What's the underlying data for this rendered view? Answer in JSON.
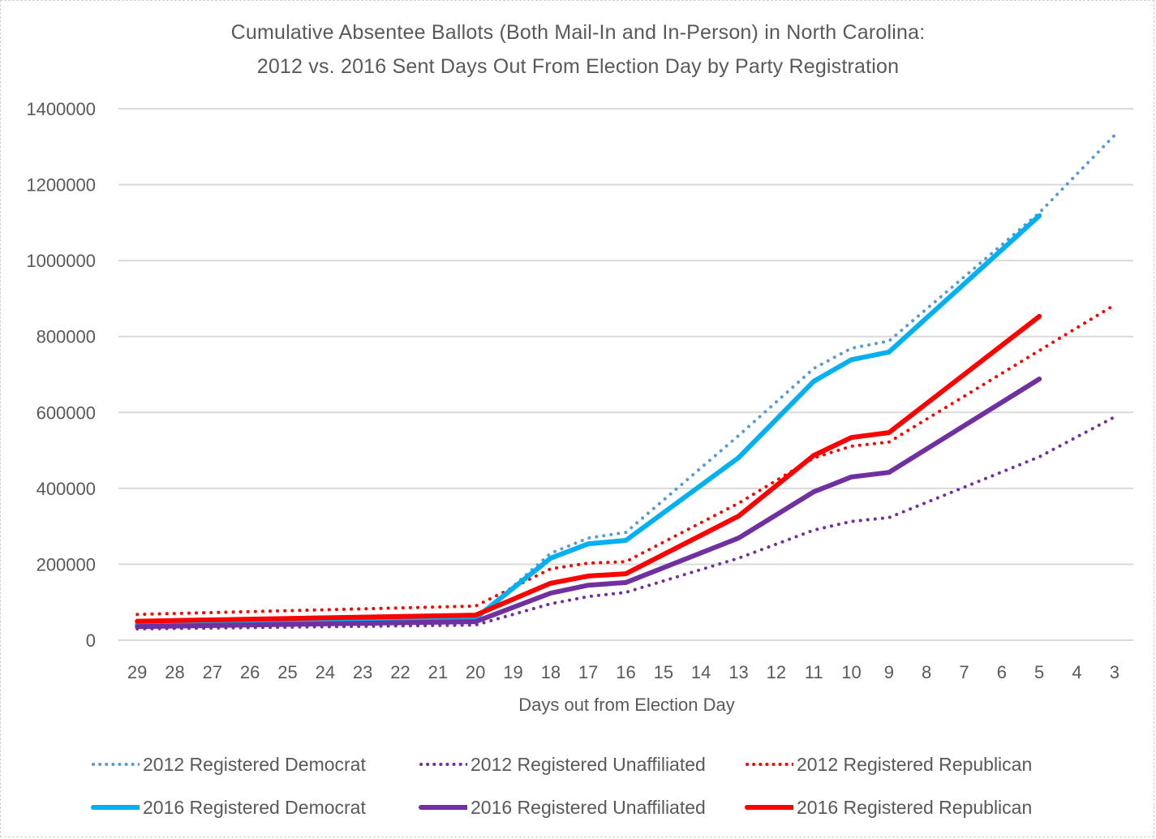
{
  "chart_data": {
    "type": "line",
    "title": "Cumulative Absentee Ballots (Both Mail-In and In-Person) in North Carolina:",
    "subtitle": "2012 vs. 2016 Sent Days Out From Election Day by Party Registration",
    "xlabel": "Days out from Election Day",
    "ylabel": "",
    "ylim": [
      0,
      1400000
    ],
    "yticks": [
      0,
      200000,
      400000,
      600000,
      800000,
      1000000,
      1200000,
      1400000
    ],
    "ytick_labels": [
      "0",
      "200000",
      "400000",
      "600000",
      "800000",
      "1000000",
      "1200000",
      "1400000"
    ],
    "grid": true,
    "legend_position": "bottom",
    "categories": [
      "29",
      "28",
      "27",
      "26",
      "25",
      "24",
      "23",
      "22",
      "21",
      "20",
      "19",
      "18",
      "17",
      "16",
      "15",
      "14",
      "13",
      "12",
      "11",
      "10",
      "9",
      "8",
      "7",
      "6",
      "5",
      "4",
      "3"
    ],
    "connect_gaps": true,
    "series": [
      {
        "name": "2012 Registered Democrat",
        "color": "#5b9bd5",
        "style": "dotted",
        "values": [
          37000,
          null,
          null,
          null,
          null,
          null,
          null,
          null,
          null,
          55000,
          null,
          229000,
          269000,
          284000,
          null,
          null,
          539000,
          null,
          716000,
          769000,
          788000,
          null,
          null,
          null,
          1126000,
          null,
          1330000
        ]
      },
      {
        "name": "2012 Registered Unaffiliated",
        "color": "#7030a0",
        "style": "dotted",
        "values": [
          30000,
          null,
          null,
          null,
          null,
          null,
          null,
          null,
          null,
          40000,
          null,
          96000,
          115000,
          126000,
          null,
          null,
          216000,
          null,
          290000,
          313000,
          323000,
          null,
          null,
          null,
          483000,
          null,
          588000
        ]
      },
      {
        "name": "2012 Registered Republican",
        "color": "#ff0000",
        "style": "dotted",
        "values": [
          68000,
          null,
          null,
          null,
          null,
          null,
          null,
          null,
          null,
          90000,
          null,
          188000,
          203000,
          207000,
          null,
          null,
          361000,
          null,
          480000,
          511000,
          522000,
          null,
          null,
          null,
          763000,
          null,
          883000
        ]
      },
      {
        "name": "2016 Registered Democrat",
        "color": "#00b0f0",
        "style": "solid",
        "values": [
          42000,
          null,
          null,
          null,
          null,
          null,
          null,
          null,
          null,
          58000,
          null,
          216000,
          254000,
          263000,
          null,
          null,
          481000,
          null,
          682000,
          739000,
          759000,
          null,
          null,
          null,
          1118000,
          null,
          null
        ]
      },
      {
        "name": "2016 Registered Unaffiliated",
        "color": "#7030a0",
        "style": "solid",
        "values": [
          36000,
          null,
          null,
          null,
          null,
          null,
          null,
          null,
          null,
          49000,
          null,
          124000,
          145000,
          152000,
          null,
          null,
          269000,
          null,
          391000,
          430000,
          442000,
          null,
          null,
          null,
          688000,
          null,
          null
        ]
      },
      {
        "name": "2016 Registered Republican",
        "color": "#ff0000",
        "style": "solid",
        "values": [
          50000,
          null,
          null,
          null,
          null,
          null,
          null,
          null,
          null,
          66000,
          null,
          150000,
          169000,
          175000,
          null,
          null,
          327000,
          null,
          487000,
          534000,
          547000,
          null,
          null,
          null,
          853000,
          null,
          null
        ]
      }
    ]
  }
}
